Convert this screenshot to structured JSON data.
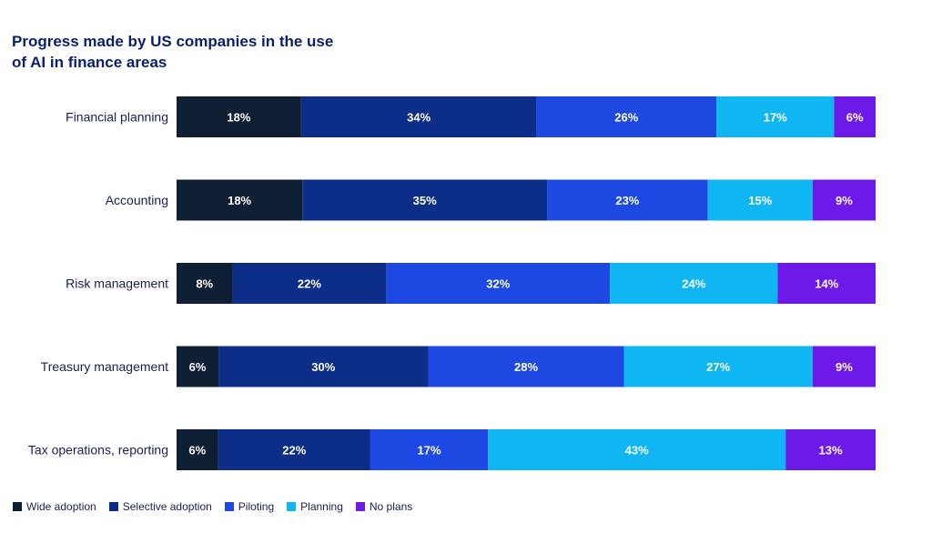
{
  "chart_data": {
    "type": "bar",
    "orientation": "horizontal",
    "stacked": true,
    "title": "Progress made by US companies in the use\nof AI in finance areas",
    "categories": [
      "Financial planning",
      "Accounting",
      "Risk management",
      "Treasury management",
      "Tax operations, reporting"
    ],
    "series": [
      {
        "name": "Wide adoption",
        "color": "#0f1f33",
        "values": [
          18,
          18,
          8,
          6,
          6
        ]
      },
      {
        "name": "Selective adoption",
        "color": "#0c2d88",
        "values": [
          34,
          35,
          22,
          30,
          22
        ]
      },
      {
        "name": "Piloting",
        "color": "#1e48e2",
        "values": [
          26,
          23,
          32,
          28,
          17
        ]
      },
      {
        "name": "Planning",
        "color": "#0fb6f2",
        "values": [
          17,
          15,
          24,
          27,
          43
        ]
      },
      {
        "name": "No plans",
        "color": "#6d1ae8",
        "values": [
          6,
          9,
          14,
          9,
          13
        ]
      }
    ],
    "value_suffix": "%",
    "legend_position": "bottom-left",
    "grid": false
  }
}
